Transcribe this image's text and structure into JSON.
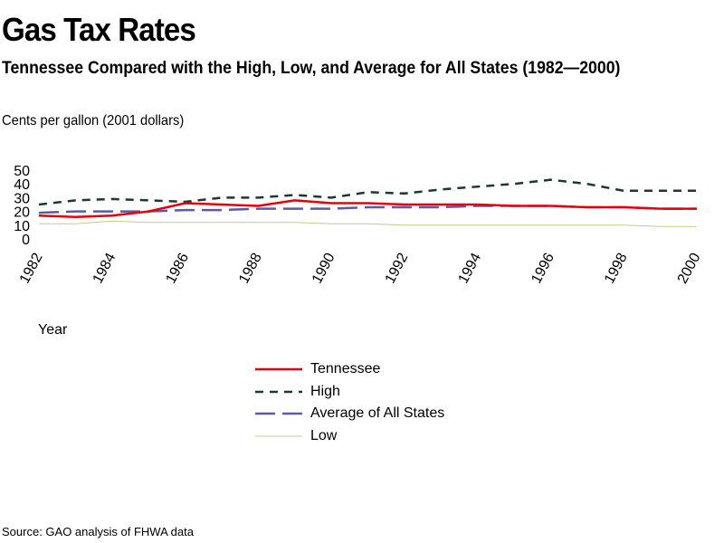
{
  "chart_data": {
    "type": "line",
    "title": "Gas Tax Rates",
    "subtitle": "Tennessee Compared with the High, Low, and Average for All States (1982—2000)",
    "ylabel": "Cents per gallon (2001 dollars)",
    "xlabel": "Year",
    "source": "Source: GAO analysis of FHWA data",
    "ylim": [
      0,
      50
    ],
    "yticks": [
      0,
      10,
      20,
      30,
      40,
      50
    ],
    "xlim": [
      1982,
      2000
    ],
    "xticks": [
      "1982",
      "1984",
      "1986",
      "1988",
      "1990",
      "1992",
      "1994",
      "1996",
      "1998",
      "2000"
    ],
    "grid": false,
    "legend_position": "bottom-center",
    "x": [
      1982,
      1983,
      1984,
      1985,
      1986,
      1987,
      1988,
      1989,
      1990,
      1991,
      1992,
      1993,
      1994,
      1995,
      1996,
      1997,
      1998,
      1999,
      2000
    ],
    "series": [
      {
        "name": "Tennessee",
        "color": "#e8000b",
        "style": "solid",
        "values": [
          17,
          16,
          17,
          20,
          26,
          25,
          24,
          28,
          26,
          26,
          25,
          25,
          25,
          24,
          24,
          23,
          23,
          22,
          22
        ]
      },
      {
        "name": "High",
        "color": "#1b3a2a",
        "style": "dotted",
        "values": [
          25,
          28,
          29,
          28,
          27,
          30,
          30,
          32,
          30,
          34,
          33,
          36,
          38,
          40,
          43,
          40,
          35,
          35,
          35
        ]
      },
      {
        "name": "Average of All States",
        "color": "#5a5aa8",
        "style": "dashed",
        "values": [
          19,
          20,
          20,
          20,
          21,
          21,
          22,
          22,
          22,
          23,
          23,
          23,
          24,
          24,
          24,
          23,
          23,
          22,
          22
        ]
      },
      {
        "name": "Low",
        "color": "#c7c98a",
        "style": "solid-thin",
        "values": [
          11,
          11,
          13,
          12,
          12,
          12,
          12,
          12,
          11,
          11,
          10,
          10,
          10,
          10,
          10,
          10,
          10,
          9,
          9
        ]
      }
    ]
  }
}
